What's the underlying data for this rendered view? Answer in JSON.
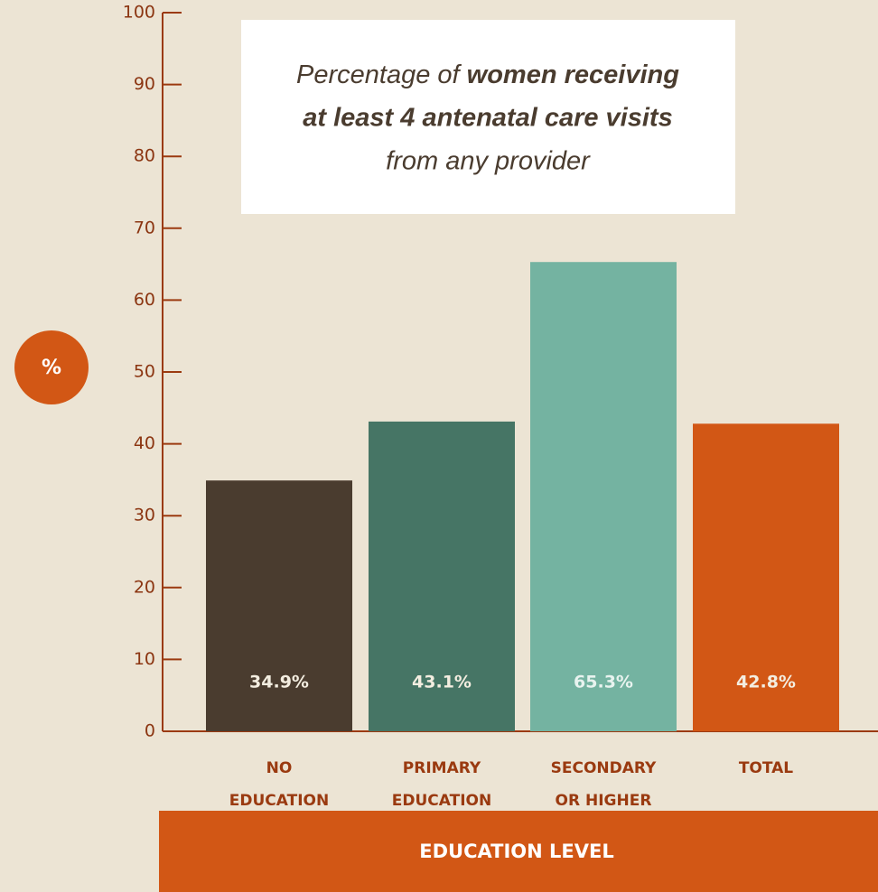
{
  "chart_data": {
    "type": "bar",
    "title": [
      "Percentage of",
      "women receiving",
      "at least 4 antenatal care visits",
      "from any provider"
    ],
    "y_label": "%",
    "x_label": "EDUCATION LEVEL",
    "categories": [
      [
        "NO",
        "EDUCATION"
      ],
      [
        "PRIMARY",
        "EDUCATION"
      ],
      [
        "SECONDARY",
        "OR HIGHER"
      ],
      [
        "TOTAL"
      ]
    ],
    "values": [
      34.9,
      43.1,
      65.3,
      42.8
    ],
    "value_labels": [
      "34.9%",
      "43.1%",
      "65.3%",
      "42.8%"
    ],
    "colors": [
      "#4a3c2f",
      "#467565",
      "#74b3a1",
      "#d25715"
    ],
    "label_colors": [
      "#f3ede0",
      "#f3ede0",
      "#e8f3ef",
      "#f3ede0"
    ],
    "ylim": [
      0,
      100
    ],
    "yticks": [
      0,
      10,
      20,
      30,
      40,
      50,
      60,
      70,
      80,
      90,
      100
    ]
  }
}
